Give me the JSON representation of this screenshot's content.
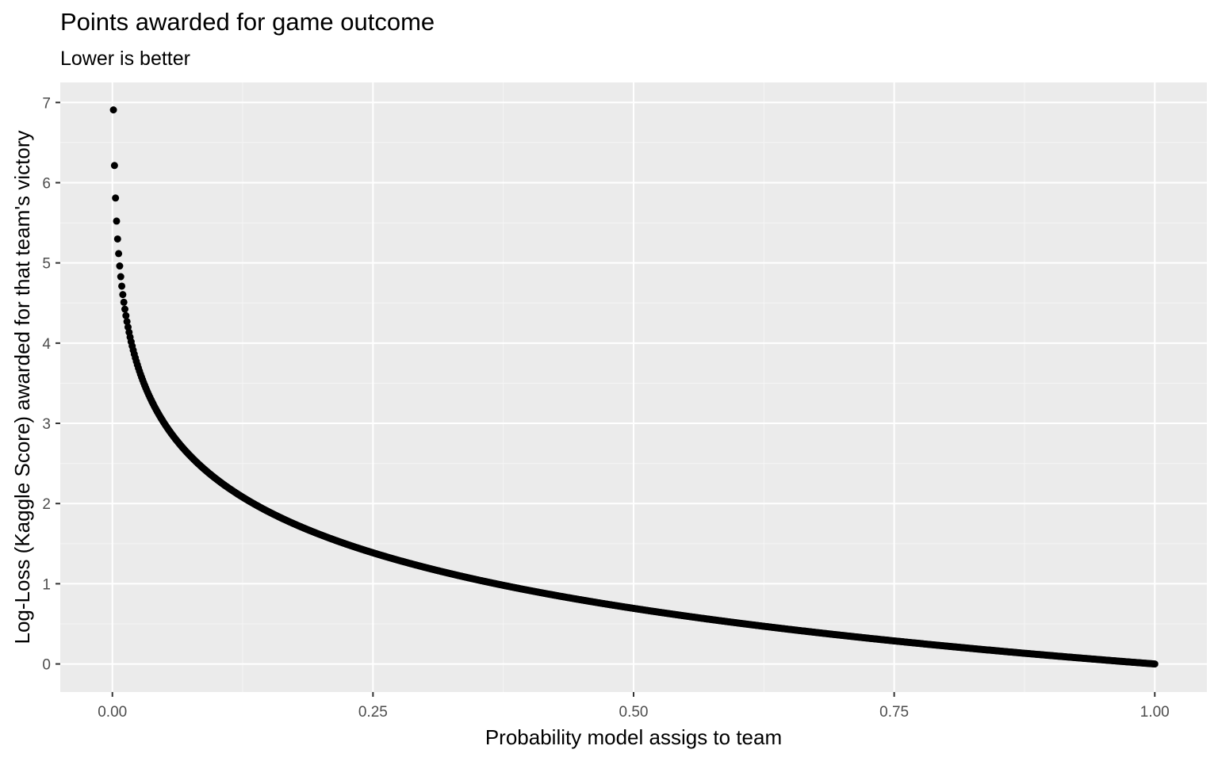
{
  "chart_data": {
    "type": "scatter",
    "title": "Points awarded for game outcome",
    "subtitle": "Lower is better",
    "xlabel": "Probability model assigs to team",
    "ylabel": "Log-Loss (Kaggle Score) awarded for that team's victory",
    "xlim": [
      -0.05,
      1.05
    ],
    "ylim": [
      -0.35,
      7.25
    ],
    "x_ticks": [
      0,
      0.25,
      0.5,
      0.75,
      1.0
    ],
    "x_tick_labels": [
      "0.00",
      "0.25",
      "0.50",
      "0.75",
      "1.00"
    ],
    "y_ticks": [
      0,
      1,
      2,
      3,
      4,
      5,
      6,
      7
    ],
    "y_tick_labels": [
      "0",
      "1",
      "2",
      "3",
      "4",
      "5",
      "6",
      "7"
    ],
    "grid": true,
    "series": [
      {
        "function": "-ln(x)",
        "x_start": 0.001,
        "x_end": 1.0,
        "x_step": 0.001,
        "point_color": "#000000"
      }
    ]
  },
  "colors": {
    "panel_background": "#ebebeb",
    "grid_major": "#ffffff",
    "grid_minor": "#f5f5f5",
    "tick_text": "#4d4d4d",
    "point": "#000000"
  }
}
